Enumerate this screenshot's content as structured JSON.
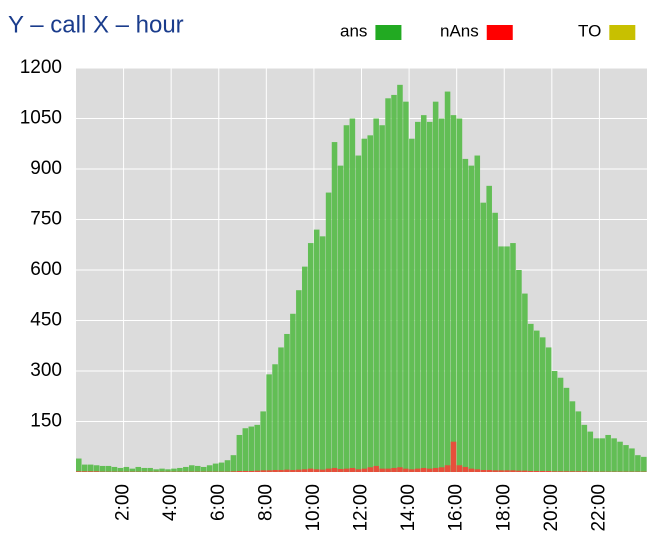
{
  "chart_data": {
    "type": "bar",
    "title": "Y – call   X – hour",
    "x": [
      0,
      0.25,
      0.5,
      0.75,
      1,
      1.25,
      1.5,
      1.75,
      2,
      2.25,
      2.5,
      2.75,
      3,
      3.25,
      3.5,
      3.75,
      4,
      4.25,
      4.5,
      4.75,
      5,
      5.25,
      5.5,
      5.75,
      6,
      6.25,
      6.5,
      6.75,
      7,
      7.25,
      7.5,
      7.75,
      8,
      8.25,
      8.5,
      8.75,
      9,
      9.25,
      9.5,
      9.75,
      10,
      10.25,
      10.5,
      10.75,
      11,
      11.25,
      11.5,
      11.75,
      12,
      12.25,
      12.5,
      12.75,
      13,
      13.25,
      13.5,
      13.75,
      14,
      14.25,
      14.5,
      14.75,
      15,
      15.25,
      15.5,
      15.75,
      16,
      16.25,
      16.5,
      16.75,
      17,
      17.25,
      17.5,
      17.75,
      18,
      18.25,
      18.5,
      18.75,
      19,
      19.25,
      19.5,
      19.75,
      20,
      20.25,
      20.5,
      20.75,
      21,
      21.25,
      21.5,
      21.75,
      22,
      22.25,
      22.5,
      22.75,
      23,
      23.25,
      23.5,
      23.75
    ],
    "series": [
      {
        "name": "ans",
        "color": "#22aa22",
        "bar_color": "#5cbd4e",
        "values": [
          40,
          22,
          22,
          20,
          18,
          18,
          15,
          12,
          15,
          10,
          15,
          12,
          12,
          8,
          10,
          8,
          10,
          12,
          15,
          20,
          18,
          15,
          20,
          25,
          28,
          35,
          50,
          110,
          130,
          135,
          140,
          180,
          290,
          320,
          370,
          410,
          470,
          540,
          610,
          680,
          720,
          700,
          830,
          980,
          910,
          1030,
          1050,
          940,
          990,
          1000,
          1050,
          1030,
          1110,
          1120,
          1150,
          1100,
          990,
          1040,
          1060,
          1040,
          1100,
          1050,
          1130,
          1060,
          1050,
          930,
          910,
          940,
          800,
          850,
          770,
          670,
          670,
          680,
          600,
          530,
          440,
          420,
          400,
          370,
          300,
          280,
          250,
          210,
          180,
          140,
          120,
          100,
          100,
          110,
          100,
          90,
          80,
          70,
          50,
          45
        ]
      },
      {
        "name": "nAns",
        "color": "#ff0000",
        "bar_color": "#ee4a3a",
        "values": [
          2,
          2,
          2,
          2,
          1,
          1,
          1,
          1,
          1,
          1,
          1,
          1,
          1,
          1,
          1,
          1,
          1,
          1,
          1,
          1,
          1,
          1,
          1,
          1,
          1,
          1,
          2,
          3,
          3,
          3,
          4,
          5,
          5,
          6,
          6,
          7,
          6,
          7,
          8,
          10,
          8,
          7,
          10,
          12,
          9,
          10,
          12,
          8,
          10,
          14,
          18,
          10,
          10,
          12,
          14,
          10,
          8,
          10,
          12,
          10,
          12,
          14,
          20,
          90,
          20,
          15,
          10,
          8,
          6,
          6,
          5,
          5,
          5,
          5,
          4,
          4,
          3,
          3,
          3,
          3,
          2,
          2,
          2,
          2,
          2,
          2,
          1,
          1,
          1,
          1,
          1,
          1,
          1,
          1,
          1,
          1
        ]
      },
      {
        "name": "TO",
        "color": "#c8c000",
        "bar_color": "#c8c000",
        "values": [
          0,
          0,
          0,
          0,
          0,
          0,
          0,
          0,
          0,
          0,
          0,
          0,
          0,
          0,
          0,
          0,
          0,
          0,
          0,
          0,
          0,
          0,
          0,
          0,
          0,
          0,
          0,
          0,
          0,
          0,
          0,
          0,
          0,
          0,
          0,
          0,
          0,
          0,
          0,
          0,
          0,
          0,
          0,
          0,
          0,
          0,
          0,
          0,
          0,
          0,
          0,
          0,
          0,
          0,
          0,
          0,
          0,
          0,
          0,
          0,
          0,
          0,
          0,
          0,
          0,
          0,
          0,
          0,
          0,
          0,
          0,
          0,
          0,
          0,
          0,
          0,
          0,
          0,
          0,
          0,
          0,
          0,
          0,
          0,
          0,
          0,
          0,
          0,
          0,
          0,
          0,
          0,
          0,
          0,
          0,
          0
        ]
      }
    ],
    "xlim": [
      0,
      24
    ],
    "xticks": [
      {
        "value": 2,
        "label": "2:00"
      },
      {
        "value": 4,
        "label": "4:00"
      },
      {
        "value": 6,
        "label": "6:00"
      },
      {
        "value": 8,
        "label": "8:00"
      },
      {
        "value": 10,
        "label": "10:00"
      },
      {
        "value": 12,
        "label": "12:00"
      },
      {
        "value": 14,
        "label": "14:00"
      },
      {
        "value": 16,
        "label": "16:00"
      },
      {
        "value": 18,
        "label": "18:00"
      },
      {
        "value": 20,
        "label": "20:00"
      },
      {
        "value": 22,
        "label": "22:00"
      }
    ],
    "ylim": [
      0,
      1200
    ],
    "yticks": [
      150,
      300,
      450,
      600,
      750,
      900,
      1050,
      1200
    ],
    "grid": true
  }
}
